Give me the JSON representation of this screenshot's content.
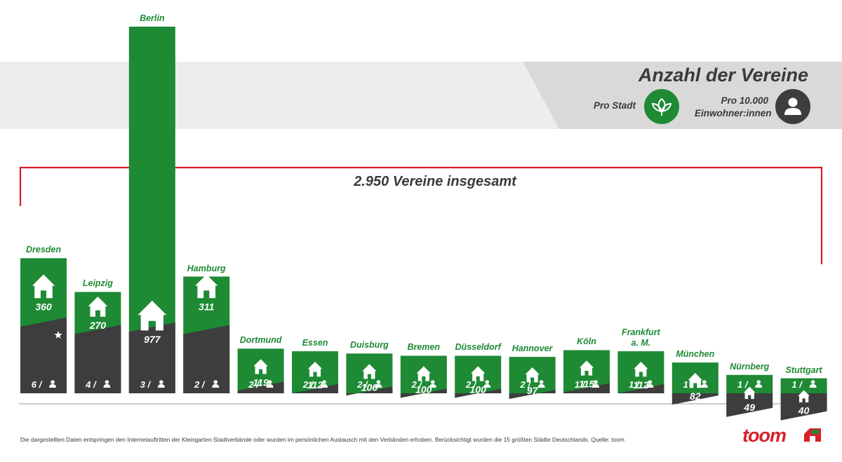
{
  "header": {
    "title": "Anzahl der Vereine",
    "per_city_label": "Pro Stadt",
    "per_capita_label_line1": "Pro 10.000",
    "per_capita_label_line2": "Einwohner:innen",
    "per_city_icon": "leaf-icon",
    "per_capita_icon": "person-icon"
  },
  "total_label": "2.950 Vereine insgesamt",
  "footer": {
    "note": "Die dargestellten Daten entspringen den Internetauftritten der Kleingarten-Stadtverbände oder wurden im persönlichen Austausch mit den Verbänden erhoben. Berücksichtigt wurden die 15 größten Städte Deutschlands. Quelle: toom",
    "logo": "toom"
  },
  "colors": {
    "green": "#1e8a34",
    "dark": "#3d3d3d",
    "red": "#d7202a",
    "text": "#3a3a3a",
    "band": "#ededed",
    "legend_bg": "#d9d9d9"
  },
  "chart_data": {
    "type": "bar",
    "categories": [
      "Dresden",
      "Leipzig",
      "Berlin",
      "Hamburg",
      "Dortmund",
      "Essen",
      "Duisburg",
      "Bremen",
      "Düsseldorf",
      "Hannover",
      "Köln",
      "Frankfurt a. M.",
      "München",
      "Nürnberg",
      "Stuttgart"
    ],
    "category_lines": [
      [
        "Dresden"
      ],
      [
        "Leipzig"
      ],
      [
        "Berlin"
      ],
      [
        "Hamburg"
      ],
      [
        "Dortmund"
      ],
      [
        "Essen"
      ],
      [
        "Duisburg"
      ],
      [
        "Bremen"
      ],
      [
        "Düsseldorf"
      ],
      [
        "Hannover"
      ],
      [
        "Köln"
      ],
      [
        "Frankfurt",
        "a.  M."
      ],
      [
        "München"
      ],
      [
        "Nürnberg"
      ],
      [
        "Stuttgart"
      ]
    ],
    "series": [
      {
        "name": "Pro Stadt",
        "values": [
          360,
          270,
          977,
          311,
          119,
          112,
          106,
          100,
          100,
          97,
          115,
          112,
          82,
          49,
          40
        ]
      },
      {
        "name": "Pro 10.000 Einwohner:innen",
        "values": [
          6,
          4,
          3,
          2,
          2,
          2,
          2,
          2,
          2,
          2,
          1,
          1,
          1,
          1,
          1
        ]
      }
    ],
    "highlight": {
      "category": "Dresden",
      "icon": "star-icon"
    },
    "total": 2950
  }
}
